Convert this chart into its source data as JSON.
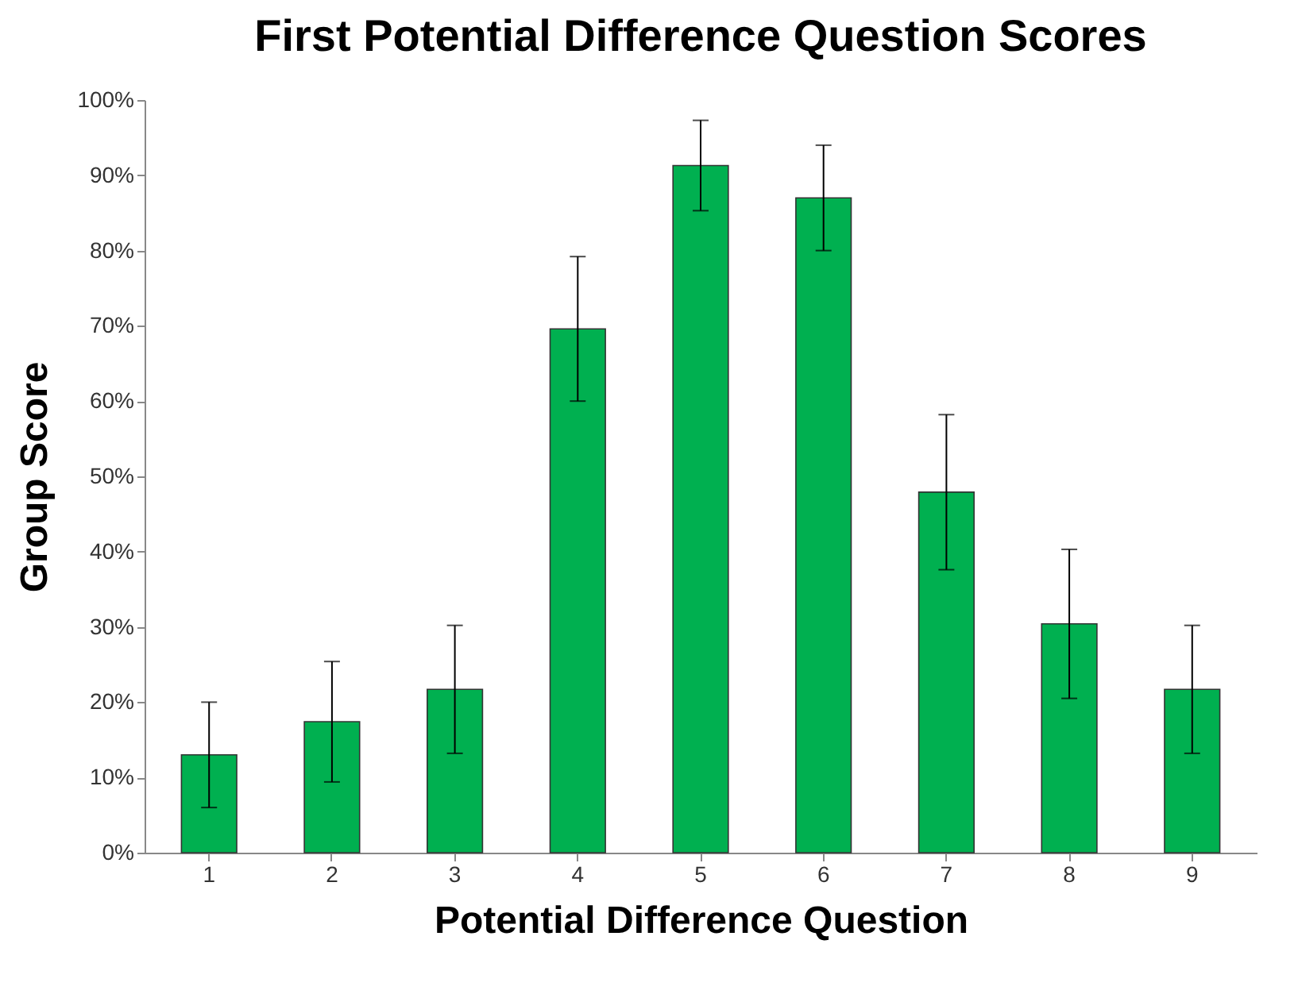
{
  "chart_data": {
    "type": "bar",
    "title": "First Potential Difference Question Scores",
    "xlabel": "Potential Difference Question",
    "ylabel": "Group Score",
    "categories": [
      "1",
      "2",
      "3",
      "4",
      "5",
      "6",
      "7",
      "8",
      "9"
    ],
    "values": [
      13,
      17.4,
      21.7,
      69.6,
      91.3,
      87,
      47.9,
      30.4,
      21.7
    ],
    "errors": [
      7,
      8,
      8.5,
      9.6,
      6,
      7,
      10.3,
      9.9,
      8.5
    ],
    "color": "#00b050",
    "ylim": [
      0,
      100
    ],
    "yticks": [
      {
        "value": 0,
        "label": "0%"
      },
      {
        "value": 10,
        "label": "10%"
      },
      {
        "value": 20,
        "label": "20%"
      },
      {
        "value": 30,
        "label": "30%"
      },
      {
        "value": 40,
        "label": "40%"
      },
      {
        "value": 50,
        "label": "50%"
      },
      {
        "value": 60,
        "label": "60%"
      },
      {
        "value": 70,
        "label": "70%"
      },
      {
        "value": 80,
        "label": "80%"
      },
      {
        "value": 90,
        "label": "90%"
      },
      {
        "value": 100,
        "label": "100%"
      }
    ],
    "grid": false
  }
}
